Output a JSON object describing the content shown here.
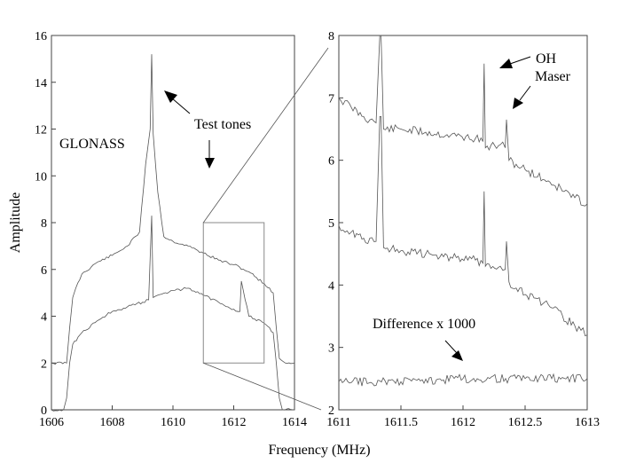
{
  "chart_data": [
    {
      "type": "line",
      "panel": "left",
      "title": "",
      "xlabel": "Frequency (MHz)",
      "ylabel": "Amplitude",
      "xlim": [
        1606,
        1614
      ],
      "ylim": [
        0,
        16
      ],
      "xticks": [
        1606,
        1608,
        1610,
        1612,
        1614
      ],
      "yticks": [
        0,
        2,
        4,
        6,
        8,
        10,
        12,
        14,
        16
      ],
      "grid": false,
      "zoom_box": {
        "x": [
          1611,
          1613
        ],
        "y": [
          2,
          8
        ]
      },
      "annotations": [
        "GLONASS",
        "Test tones"
      ],
      "series": [
        {
          "x": [
            1606.0,
            1606.5,
            1606.6,
            1606.7,
            1606.8,
            1607.0,
            1607.5,
            1608.0,
            1608.5,
            1608.9,
            1609.1,
            1609.25,
            1609.3,
            1609.35,
            1609.5,
            1609.7,
            1610.0,
            1610.5,
            1611.0,
            1611.5,
            1612.0,
            1612.5,
            1613.0,
            1613.3,
            1613.4,
            1613.5,
            1613.7,
            1614.0
          ],
          "values": [
            2.0,
            2.0,
            3.5,
            4.8,
            5.2,
            5.8,
            6.3,
            6.6,
            7.0,
            7.6,
            10.5,
            12.0,
            15.2,
            11.8,
            9.3,
            7.4,
            7.2,
            7.0,
            6.7,
            6.4,
            6.2,
            5.9,
            5.4,
            5.0,
            3.5,
            2.2,
            2.0,
            2.0
          ]
        },
        {
          "x": [
            1606.0,
            1606.4,
            1606.5,
            1606.6,
            1606.7,
            1607.0,
            1607.5,
            1608.0,
            1608.5,
            1609.0,
            1609.2,
            1609.3,
            1609.35,
            1609.5,
            1610.0,
            1610.5,
            1611.0,
            1611.5,
            1612.0,
            1612.2,
            1612.25,
            1612.5,
            1613.0,
            1613.3,
            1613.4,
            1613.5,
            1613.6,
            1614.0
          ],
          "values": [
            0.0,
            0.0,
            0.5,
            2.0,
            2.8,
            3.3,
            3.8,
            4.2,
            4.4,
            4.6,
            4.7,
            8.3,
            4.8,
            4.9,
            5.1,
            5.2,
            4.9,
            4.6,
            4.3,
            4.2,
            5.5,
            4.0,
            3.7,
            3.3,
            2.0,
            0.5,
            0.0,
            0.0
          ]
        }
      ]
    },
    {
      "type": "line",
      "panel": "right",
      "title": "",
      "xlabel": "Frequency (MHz)",
      "ylabel": "",
      "xlim": [
        1611,
        1613
      ],
      "ylim": [
        2,
        8
      ],
      "xticks": [
        1611,
        1611.5,
        1612,
        1612.5,
        1613
      ],
      "yticks": [
        2,
        3,
        4,
        5,
        6,
        7,
        8
      ],
      "grid": false,
      "annotations": [
        "OH",
        "Maser",
        "Difference x 1000"
      ],
      "series": [
        {
          "x": [
            1611.0,
            1611.1,
            1611.2,
            1611.3,
            1611.33,
            1611.34,
            1611.36,
            1611.5,
            1611.7,
            1611.9,
            1612.1,
            1612.16,
            1612.17,
            1612.18,
            1612.3,
            1612.34,
            1612.35,
            1612.37,
            1612.5,
            1612.7,
            1612.9,
            1613.0
          ],
          "values": [
            7.0,
            6.85,
            6.7,
            6.6,
            8.0,
            8.0,
            6.5,
            6.5,
            6.45,
            6.4,
            6.35,
            6.3,
            7.55,
            6.2,
            6.25,
            6.2,
            6.65,
            6.0,
            5.85,
            5.65,
            5.4,
            5.3
          ]
        },
        {
          "x": [
            1611.0,
            1611.1,
            1611.2,
            1611.3,
            1611.33,
            1611.34,
            1611.36,
            1611.5,
            1611.7,
            1611.9,
            1612.1,
            1612.16,
            1612.17,
            1612.18,
            1612.3,
            1612.34,
            1612.35,
            1612.37,
            1612.5,
            1612.7,
            1612.9,
            1613.0
          ],
          "values": [
            4.95,
            4.85,
            4.75,
            4.7,
            6.7,
            6.7,
            4.6,
            4.55,
            4.5,
            4.45,
            4.4,
            4.35,
            5.5,
            4.3,
            4.3,
            4.25,
            4.7,
            4.05,
            3.85,
            3.65,
            3.35,
            3.2
          ]
        },
        {
          "x": [
            1611.0,
            1611.5,
            1612.0,
            1612.5,
            1613.0
          ],
          "values": [
            2.45,
            2.45,
            2.5,
            2.5,
            2.5
          ]
        }
      ]
    }
  ],
  "labels": {
    "ylabel": "Amplitude",
    "xlabel": "Frequency (MHz)",
    "glonass": "GLONASS",
    "test_tones": "Test tones",
    "oh": "OH",
    "maser": "Maser",
    "difference": "Difference x 1000"
  }
}
